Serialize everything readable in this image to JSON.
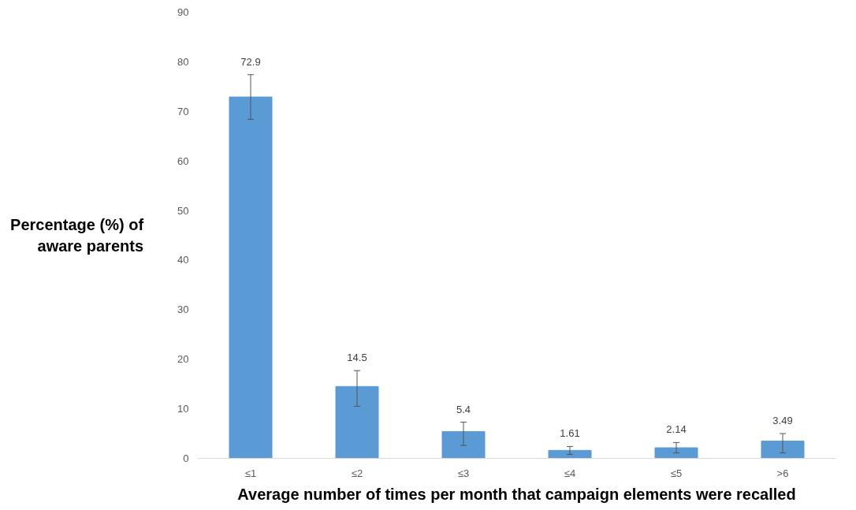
{
  "chart_data": {
    "type": "bar",
    "xlabel": "Average number of times per month that campaign elements were recalled",
    "ylabel": "Percentage (%) of aware parents",
    "categories": [
      "≤1",
      "≤2",
      "≤3",
      "≤4",
      "≤5",
      ">6"
    ],
    "values": [
      72.9,
      14.5,
      5.4,
      1.61,
      2.14,
      3.49
    ],
    "errors": [
      [
        68.4,
        77.4
      ],
      [
        10.5,
        17.7
      ],
      [
        2.6,
        7.3
      ],
      [
        0.8,
        2.4
      ],
      [
        1.1,
        3.2
      ],
      [
        1.1,
        5.0
      ]
    ],
    "color": "#5b9bd5",
    "ylim": [
      0,
      90
    ],
    "yticks": [
      0,
      10,
      20,
      30,
      40,
      50,
      60,
      70,
      80,
      90
    ],
    "grid": false,
    "data_labels": true
  }
}
